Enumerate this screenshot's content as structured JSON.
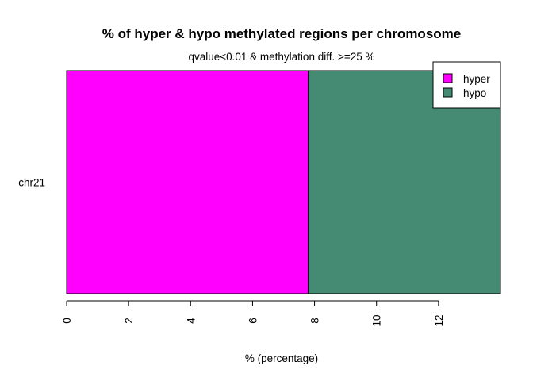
{
  "chart_data": {
    "type": "bar",
    "orientation": "horizontal",
    "stacked": true,
    "title": "% of hyper & hypo methylated regions per chromosome",
    "subtitle": "qvalue<0.01 & methylation diff. >=25 %",
    "xlabel": "% (percentage)",
    "ylabel": "",
    "categories": [
      "chr21"
    ],
    "xlim": [
      0,
      14
    ],
    "xticks": [
      0,
      2,
      4,
      6,
      8,
      10,
      12
    ],
    "series": [
      {
        "name": "hyper",
        "values": [
          7.8
        ],
        "color": "#ff00ff"
      },
      {
        "name": "hypo",
        "values": [
          6.2
        ],
        "color": "#458b74"
      }
    ],
    "legend": {
      "position": "top-right",
      "entries": [
        "hyper",
        "hypo"
      ]
    },
    "grid": false
  }
}
